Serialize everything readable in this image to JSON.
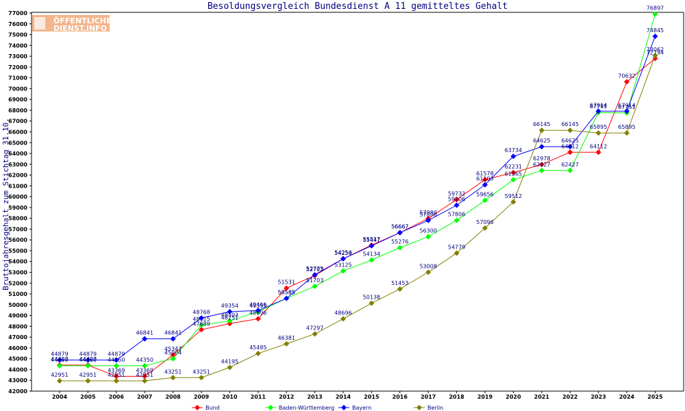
{
  "chart_data": {
    "type": "line",
    "title": "Besoldungsvergleich Bundesdienst A 11 gemitteltes Gehalt",
    "xlabel": "",
    "ylabel": "Bruttojahresgehalt zum Stichtag 31.10.",
    "ylim": [
      42000,
      77000
    ],
    "y_step": 1000,
    "grid": false,
    "legend_position": "bottom",
    "categories": [
      "2004",
      "2005",
      "2006",
      "2007",
      "2008",
      "2009",
      "2010",
      "2011",
      "2012",
      "2013",
      "2014",
      "2015",
      "2016",
      "2017",
      "2018",
      "2019",
      "2020",
      "2021",
      "2022",
      "2023",
      "2024",
      "2025"
    ],
    "series": [
      {
        "name": "Bund",
        "color": "#ff0000",
        "values": [
          44407,
          44407,
          43369,
          43369,
          45347,
          47689,
          48251,
          48696,
          51531,
          52703,
          54250,
          55517,
          56667,
          57980,
          59732,
          61578,
          62231,
          62978,
          64112,
          64112,
          70632,
          72794
        ]
      },
      {
        "name": "Baden-Württemberg",
        "color": "#00ff00",
        "values": [
          44350,
          44350,
          44350,
          44350,
          45004,
          48115,
          48503,
          49351,
          50585,
          51703,
          53125,
          54134,
          55276,
          56300,
          57806,
          59656,
          61565,
          62427,
          62427,
          67791,
          67751,
          76897
        ]
      },
      {
        "name": "Bayern",
        "color": "#0000ff",
        "values": [
          44879,
          44879,
          44879,
          46841,
          46841,
          48768,
          49354,
          49466,
          50585,
          52775,
          54254,
          55447,
          56667,
          57800,
          59206,
          61103,
          63734,
          64625,
          64625,
          67914,
          67914,
          74845
        ]
      },
      {
        "name": "Berlin",
        "color": "#808000",
        "values": [
          42951,
          42951,
          42951,
          42951,
          43251,
          43251,
          44195,
          45485,
          46381,
          47297,
          48696,
          50138,
          51453,
          53008,
          54779,
          57096,
          59512,
          66145,
          66145,
          65895,
          65895,
          73062
        ]
      }
    ]
  },
  "logo": {
    "line1": "ÖFFENTLICHER",
    "line2": "DIENST.INFO"
  }
}
